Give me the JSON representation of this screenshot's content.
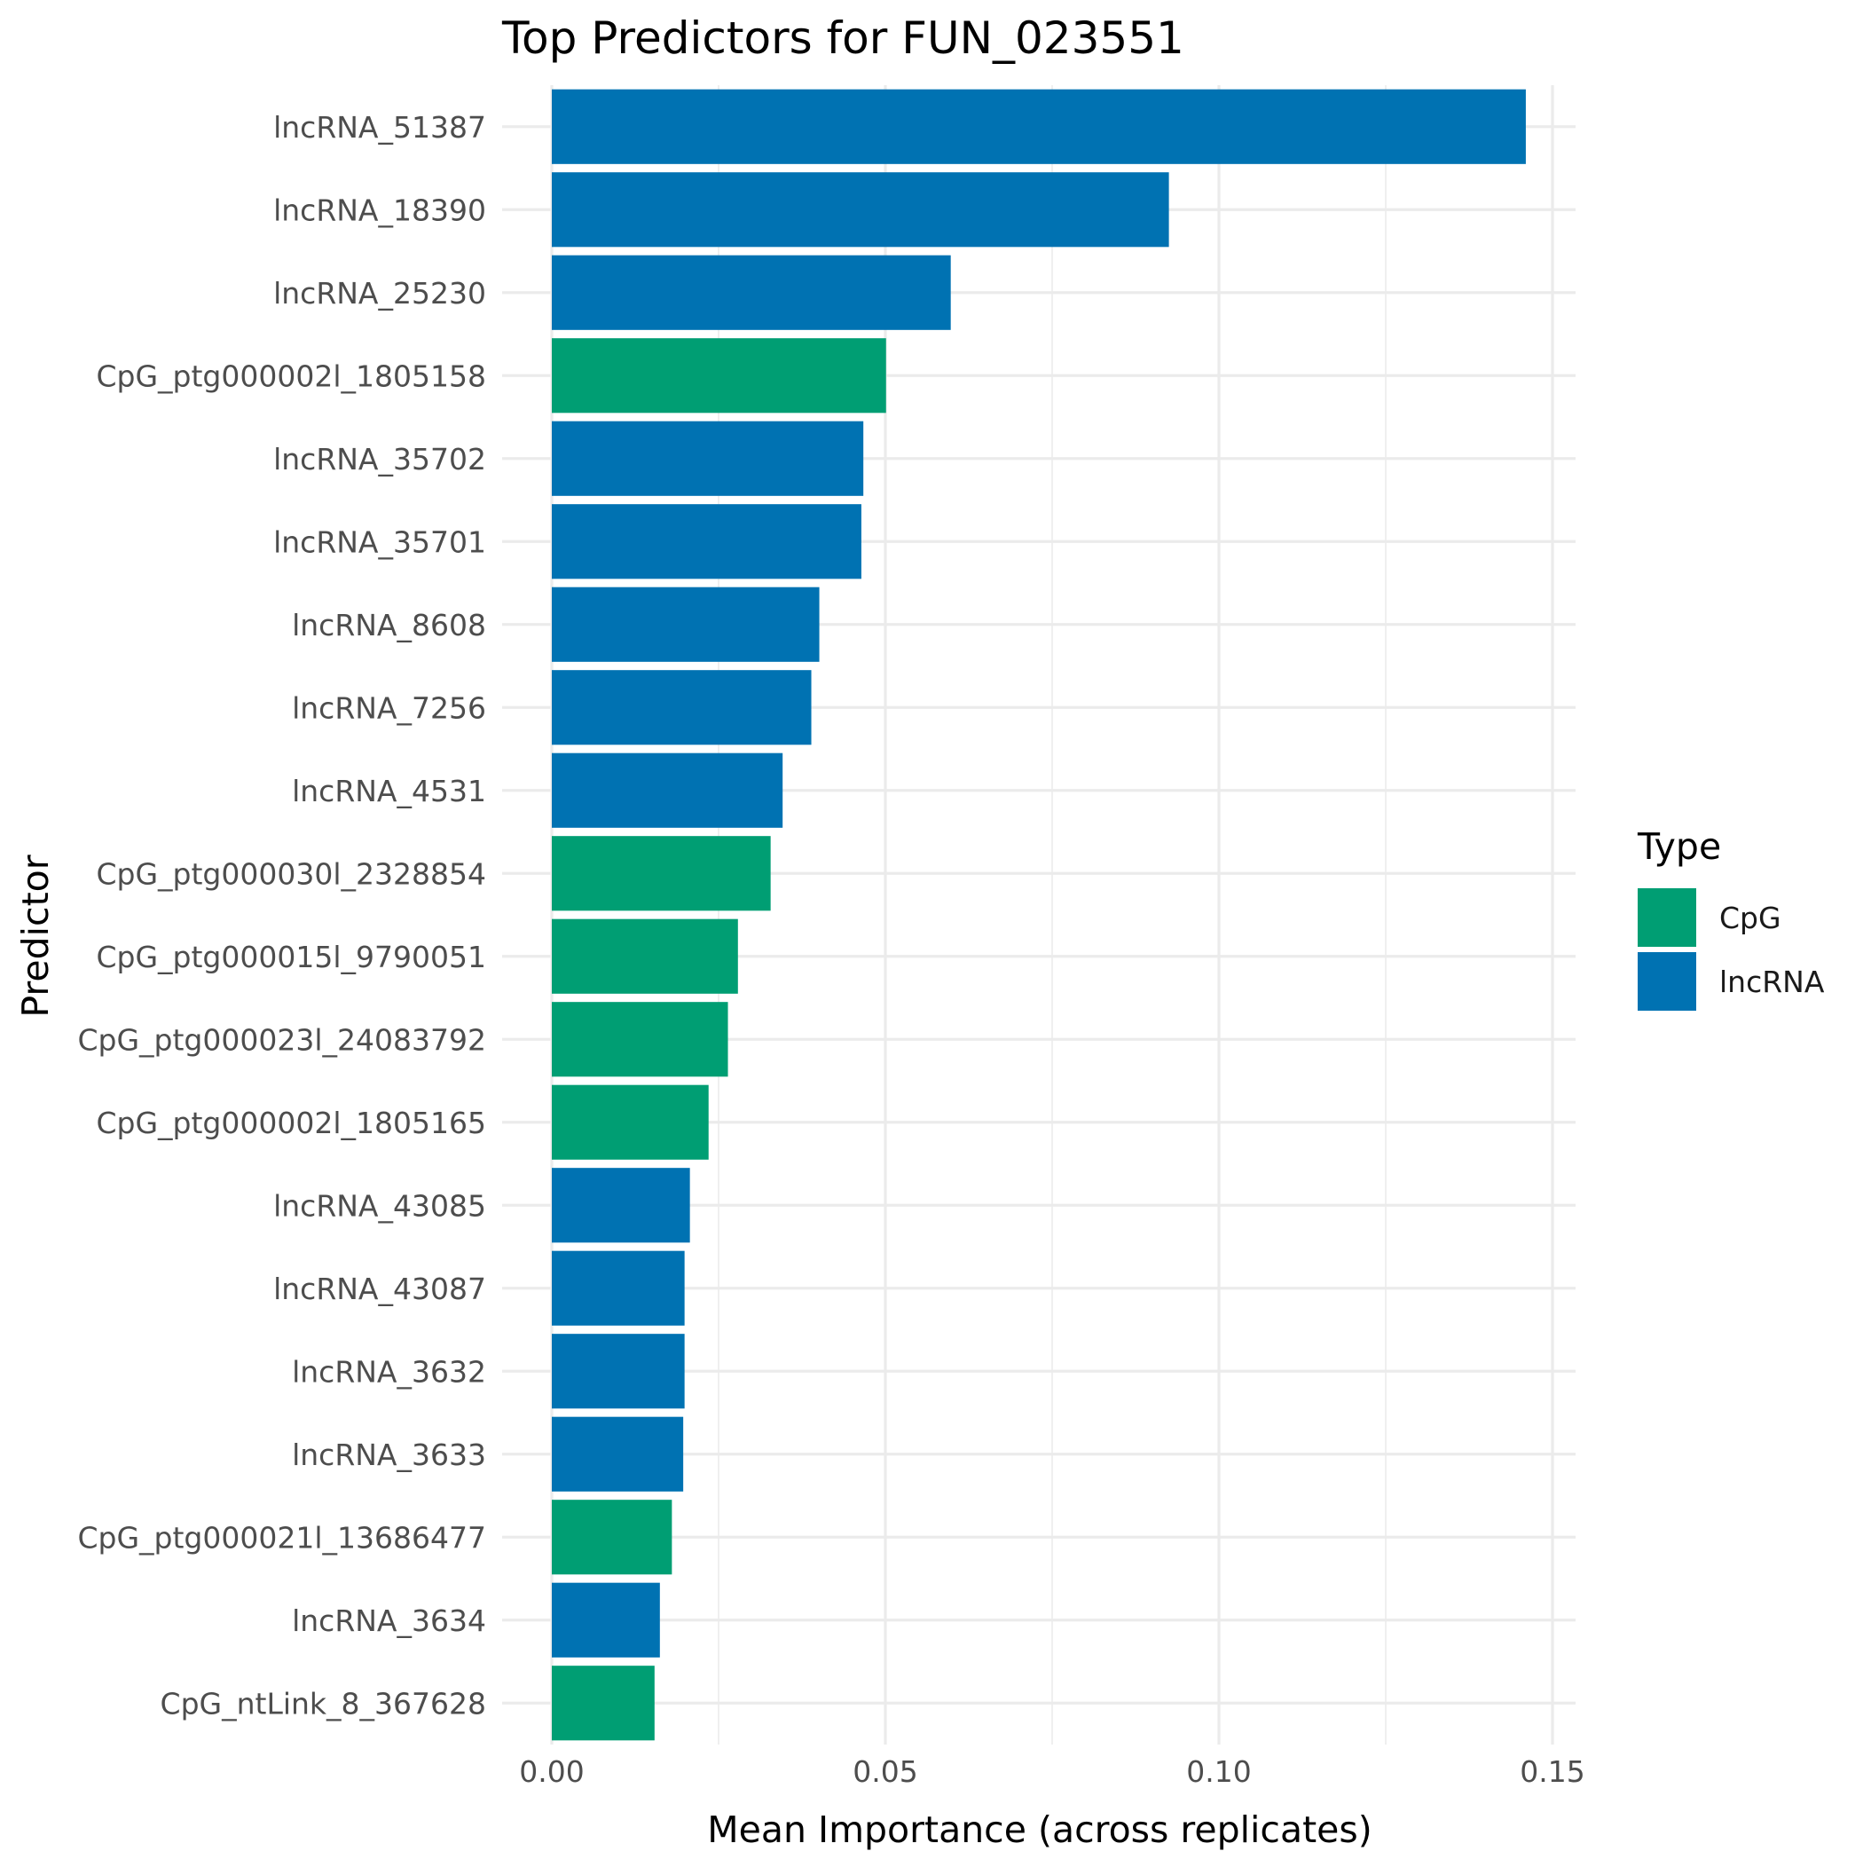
{
  "chart_data": {
    "type": "bar",
    "orientation": "horizontal",
    "title": "Top Predictors for FUN_023551",
    "xlabel": "Mean Importance (across replicates)",
    "ylabel": "Predictor",
    "xlim": [
      0,
      0.153
    ],
    "x_ticks": [
      "0.00",
      "0.05",
      "0.10",
      "0.15"
    ],
    "x_tick_values": [
      0,
      0.05,
      0.1,
      0.15
    ],
    "grid": true,
    "legend": {
      "title": "Type",
      "position": "right",
      "entries": [
        {
          "name": "CpG",
          "color": "#009E73"
        },
        {
          "name": "lncRNA",
          "color": "#0072B2"
        }
      ]
    },
    "categories": [
      "lncRNA_51387",
      "lncRNA_18390",
      "lncRNA_25230",
      "CpG_ptg000002l_1805158",
      "lncRNA_35702",
      "lncRNA_35701",
      "lncRNA_8608",
      "lncRNA_7256",
      "lncRNA_4531",
      "CpG_ptg000030l_2328854",
      "CpG_ptg000015l_9790051",
      "CpG_ptg000023l_24083792",
      "CpG_ptg000002l_1805165",
      "lncRNA_43085",
      "lncRNA_43087",
      "lncRNA_3632",
      "lncRNA_3633",
      "CpG_ptg000021l_13686477",
      "lncRNA_3634",
      "CpG_ntLink_8_367628"
    ],
    "values": [
      0.146,
      0.0925,
      0.0598,
      0.0501,
      0.0467,
      0.0464,
      0.0401,
      0.0389,
      0.0346,
      0.0328,
      0.0279,
      0.0264,
      0.0235,
      0.0207,
      0.0199,
      0.0199,
      0.0197,
      0.018,
      0.0162,
      0.0154
    ],
    "types": [
      "lncRNA",
      "lncRNA",
      "lncRNA",
      "CpG",
      "lncRNA",
      "lncRNA",
      "lncRNA",
      "lncRNA",
      "lncRNA",
      "CpG",
      "CpG",
      "CpG",
      "CpG",
      "lncRNA",
      "lncRNA",
      "lncRNA",
      "lncRNA",
      "CpG",
      "lncRNA",
      "CpG"
    ]
  }
}
